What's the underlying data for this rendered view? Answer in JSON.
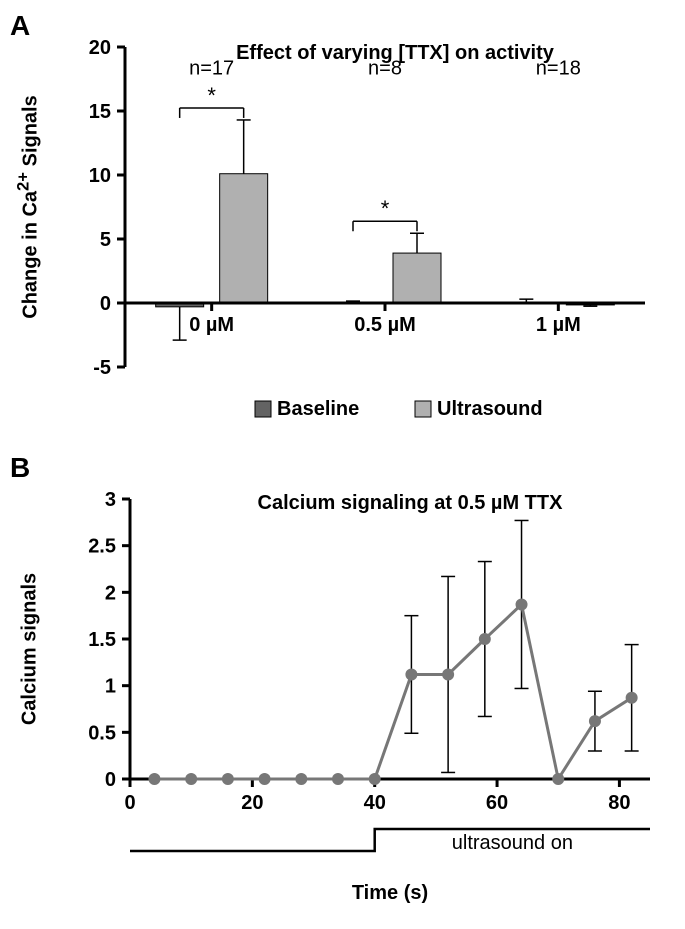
{
  "panelA": {
    "label": "A",
    "title": "Effect of varying [TTX] on activity",
    "ylabel_html": "Change in Ca²⁺ Signals",
    "type": "bar",
    "ylim": [
      -5,
      20
    ],
    "yticks": [
      -5,
      0,
      5,
      10,
      15,
      20
    ],
    "categories": [
      "0 µM",
      "0.5 µM",
      "1 µM"
    ],
    "n_labels": [
      "n=17",
      "n=8",
      "n=18"
    ],
    "series": [
      {
        "name": "Baseline",
        "color": "#636363",
        "values": [
          -0.3,
          0.05,
          0.05
        ],
        "errors": [
          2.6,
          0.1,
          0.25
        ]
      },
      {
        "name": "Ultrasound",
        "color": "#b0b0b0",
        "values": [
          10.1,
          3.9,
          -0.15
        ],
        "errors": [
          4.2,
          1.55,
          0.1
        ]
      }
    ],
    "sig_brackets": [
      {
        "group": 0,
        "label": "*"
      },
      {
        "group": 1,
        "label": "*"
      }
    ],
    "axis_color": "#000000",
    "axis_width": 3,
    "bar_border": "#000000",
    "error_color": "#000000",
    "error_width": 1.5,
    "tick_fontsize": 20,
    "tick_fontweight": "bold",
    "legend": {
      "labels": [
        "Baseline",
        "Ultrasound"
      ],
      "colors": [
        "#636363",
        "#b0b0b0"
      ]
    }
  },
  "panelB": {
    "label": "B",
    "title": "Calcium signaling at 0.5 µM TTX",
    "ylabel": "Calcium signals",
    "xlabel": "Time (s)",
    "type": "line",
    "ylim": [
      0,
      3
    ],
    "yticks": [
      0,
      0.5,
      1,
      1.5,
      2,
      2.5,
      3
    ],
    "xlim": [
      0,
      85
    ],
    "xticks": [
      0,
      20,
      40,
      60,
      80
    ],
    "x": [
      4,
      10,
      16,
      22,
      28,
      34,
      40,
      46,
      52,
      58,
      64,
      70,
      76,
      82
    ],
    "y": [
      0,
      0,
      0,
      0,
      0,
      0,
      0,
      1.12,
      1.12,
      1.5,
      1.87,
      0,
      0.62,
      0.87
    ],
    "err": [
      0,
      0,
      0,
      0,
      0,
      0,
      0,
      0.63,
      1.05,
      0.83,
      0.9,
      0,
      0.32,
      0.57
    ],
    "line_color": "#777777",
    "line_width": 3,
    "marker_color": "#777777",
    "marker_radius": 6,
    "error_color": "#000000",
    "error_width": 1.5,
    "axis_color": "#000000",
    "axis_width": 3,
    "tick_fontsize": 20,
    "tick_fontweight": "bold",
    "stim_label": "ultrasound on",
    "stim_on_x": 40
  }
}
